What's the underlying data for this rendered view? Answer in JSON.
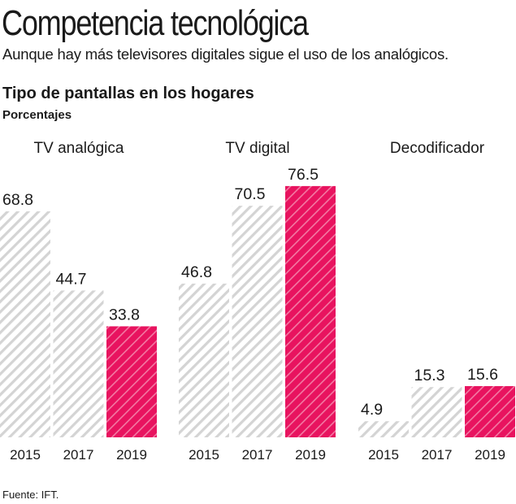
{
  "title": "Competencia tecnológica",
  "subtitle": "Aunque hay más televisores digitales sigue el uso de los analógicos.",
  "source": "Fuente: IFT.",
  "colors": {
    "highlight": "#e8135f",
    "past": "#d9d9d9"
  },
  "chart_data": {
    "type": "bar",
    "title": "Tipo de pantallas en los hogares",
    "ylabel": "Porcentajes",
    "ylim": [
      0,
      80
    ],
    "grid": false,
    "categories": [
      "2015",
      "2017",
      "2019"
    ],
    "groups": [
      {
        "name": "TV analógica",
        "values": [
          68.8,
          44.7,
          33.8
        ]
      },
      {
        "name": "TV digital",
        "values": [
          46.8,
          70.5,
          76.5
        ]
      },
      {
        "name": "Decodificador",
        "values": [
          4.9,
          15.3,
          15.6
        ]
      }
    ],
    "value_labels": [
      [
        "68.8",
        "44.7",
        "33.8"
      ],
      [
        "46.8",
        "70.5",
        "76.5"
      ],
      [
        "4.9",
        "15.3",
        "15.6"
      ]
    ]
  }
}
